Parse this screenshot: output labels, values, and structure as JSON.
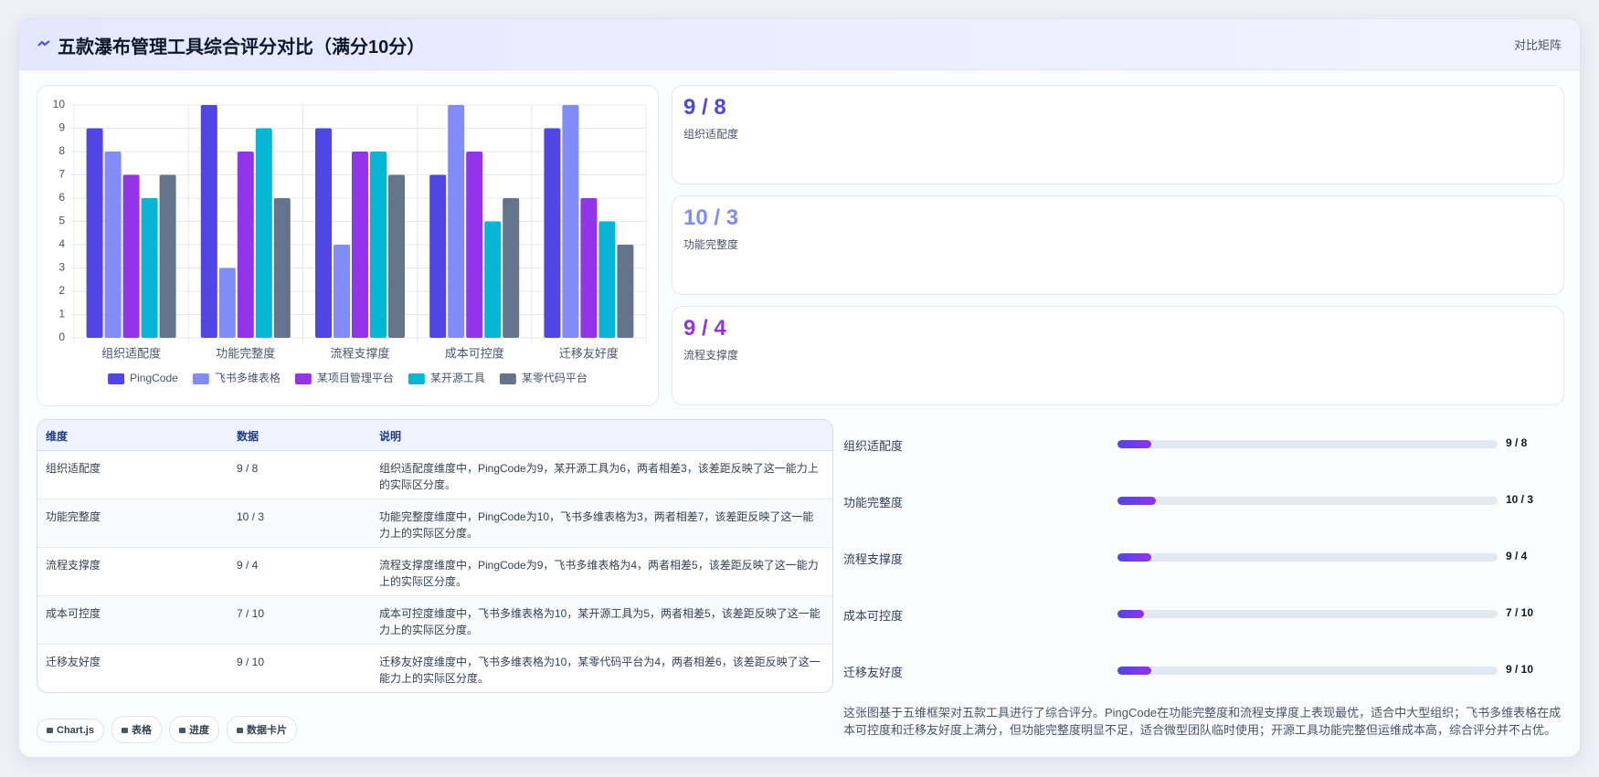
{
  "header": {
    "title": "五款瀑布管理工具综合评分对比（满分10分）",
    "badge": "对比矩阵"
  },
  "chart_data": {
    "type": "bar",
    "categories": [
      "组织适配度",
      "功能完整度",
      "流程支撑度",
      "成本可控度",
      "迁移友好度"
    ],
    "series": [
      {
        "name": "PingCode",
        "color": "#4f46e5",
        "values": [
          9,
          10,
          9,
          7,
          9
        ]
      },
      {
        "name": "飞书多维表格",
        "color": "#818cf8",
        "values": [
          8,
          3,
          4,
          10,
          10
        ]
      },
      {
        "name": "某项目管理平台",
        "color": "#9333ea",
        "values": [
          7,
          8,
          8,
          8,
          6
        ]
      },
      {
        "name": "某开源工具",
        "color": "#06b6d4",
        "values": [
          6,
          9,
          8,
          5,
          5
        ]
      },
      {
        "name": "某零代码平台",
        "color": "#64748b",
        "values": [
          7,
          6,
          7,
          6,
          4
        ]
      }
    ],
    "ylim": [
      0,
      10
    ],
    "yticks": [
      0,
      1,
      2,
      3,
      4,
      5,
      6,
      7,
      8,
      9,
      10
    ],
    "grid": true,
    "legend": "bottom"
  },
  "cards": [
    {
      "value": "9 / 8",
      "label": "组织适配度",
      "color": "#4f46e5"
    },
    {
      "value": "10 / 3",
      "label": "功能完整度",
      "color": "#818cf8"
    },
    {
      "value": "9 / 4",
      "label": "流程支撑度",
      "color": "#9333ea"
    }
  ],
  "table": {
    "columns": [
      "维度",
      "数据",
      "说明"
    ],
    "rows": [
      [
        "组织适配度",
        "9 / 8",
        "组织适配度维度中，PingCode为9，某开源工具为6，两者相差3，该差距反映了这一能力上的实际区分度。"
      ],
      [
        "功能完整度",
        "10 / 3",
        "功能完整度维度中，PingCode为10，飞书多维表格为3，两者相差7，该差距反映了这一能力上的实际区分度。"
      ],
      [
        "流程支撑度",
        "9 / 4",
        "流程支撑度维度中，PingCode为9，飞书多维表格为4，两者相差5，该差距反映了这一能力上的实际区分度。"
      ],
      [
        "成本可控度",
        "7 / 10",
        "成本可控度维度中，飞书多维表格为10，某开源工具为5，两者相差5，该差距反映了这一能力上的实际区分度。"
      ],
      [
        "迁移友好度",
        "9 / 10",
        "迁移友好度维度中，飞书多维表格为10，某零代码平台为4，两者相差6，该差距反映了这一能力上的实际区分度。"
      ]
    ]
  },
  "progress": {
    "xlim": [
      0,
      100
    ],
    "items": [
      {
        "label": "组织适配度",
        "value": 9,
        "value_label": "9 / 8"
      },
      {
        "label": "功能完整度",
        "value": 10,
        "value_label": "10 / 3"
      },
      {
        "label": "流程支撑度",
        "value": 9,
        "value_label": "9 / 4"
      },
      {
        "label": "成本可控度",
        "value": 7,
        "value_label": "7 / 10"
      },
      {
        "label": "迁移友好度",
        "value": 9,
        "value_label": "9 / 10"
      }
    ]
  },
  "description": "这张图基于五维框架对五款工具进行了综合评分。PingCode在功能完整度和流程支撑度上表现最优，适合中大型组织；飞书多维表格在成本可控度和迁移友好度上满分，但功能完整度明显不足，适合微型团队临时使用；开源工具功能完整但运维成本高，综合评分并不占优。",
  "tags": [
    "Chart.js",
    "表格",
    "进度",
    "数据卡片"
  ]
}
